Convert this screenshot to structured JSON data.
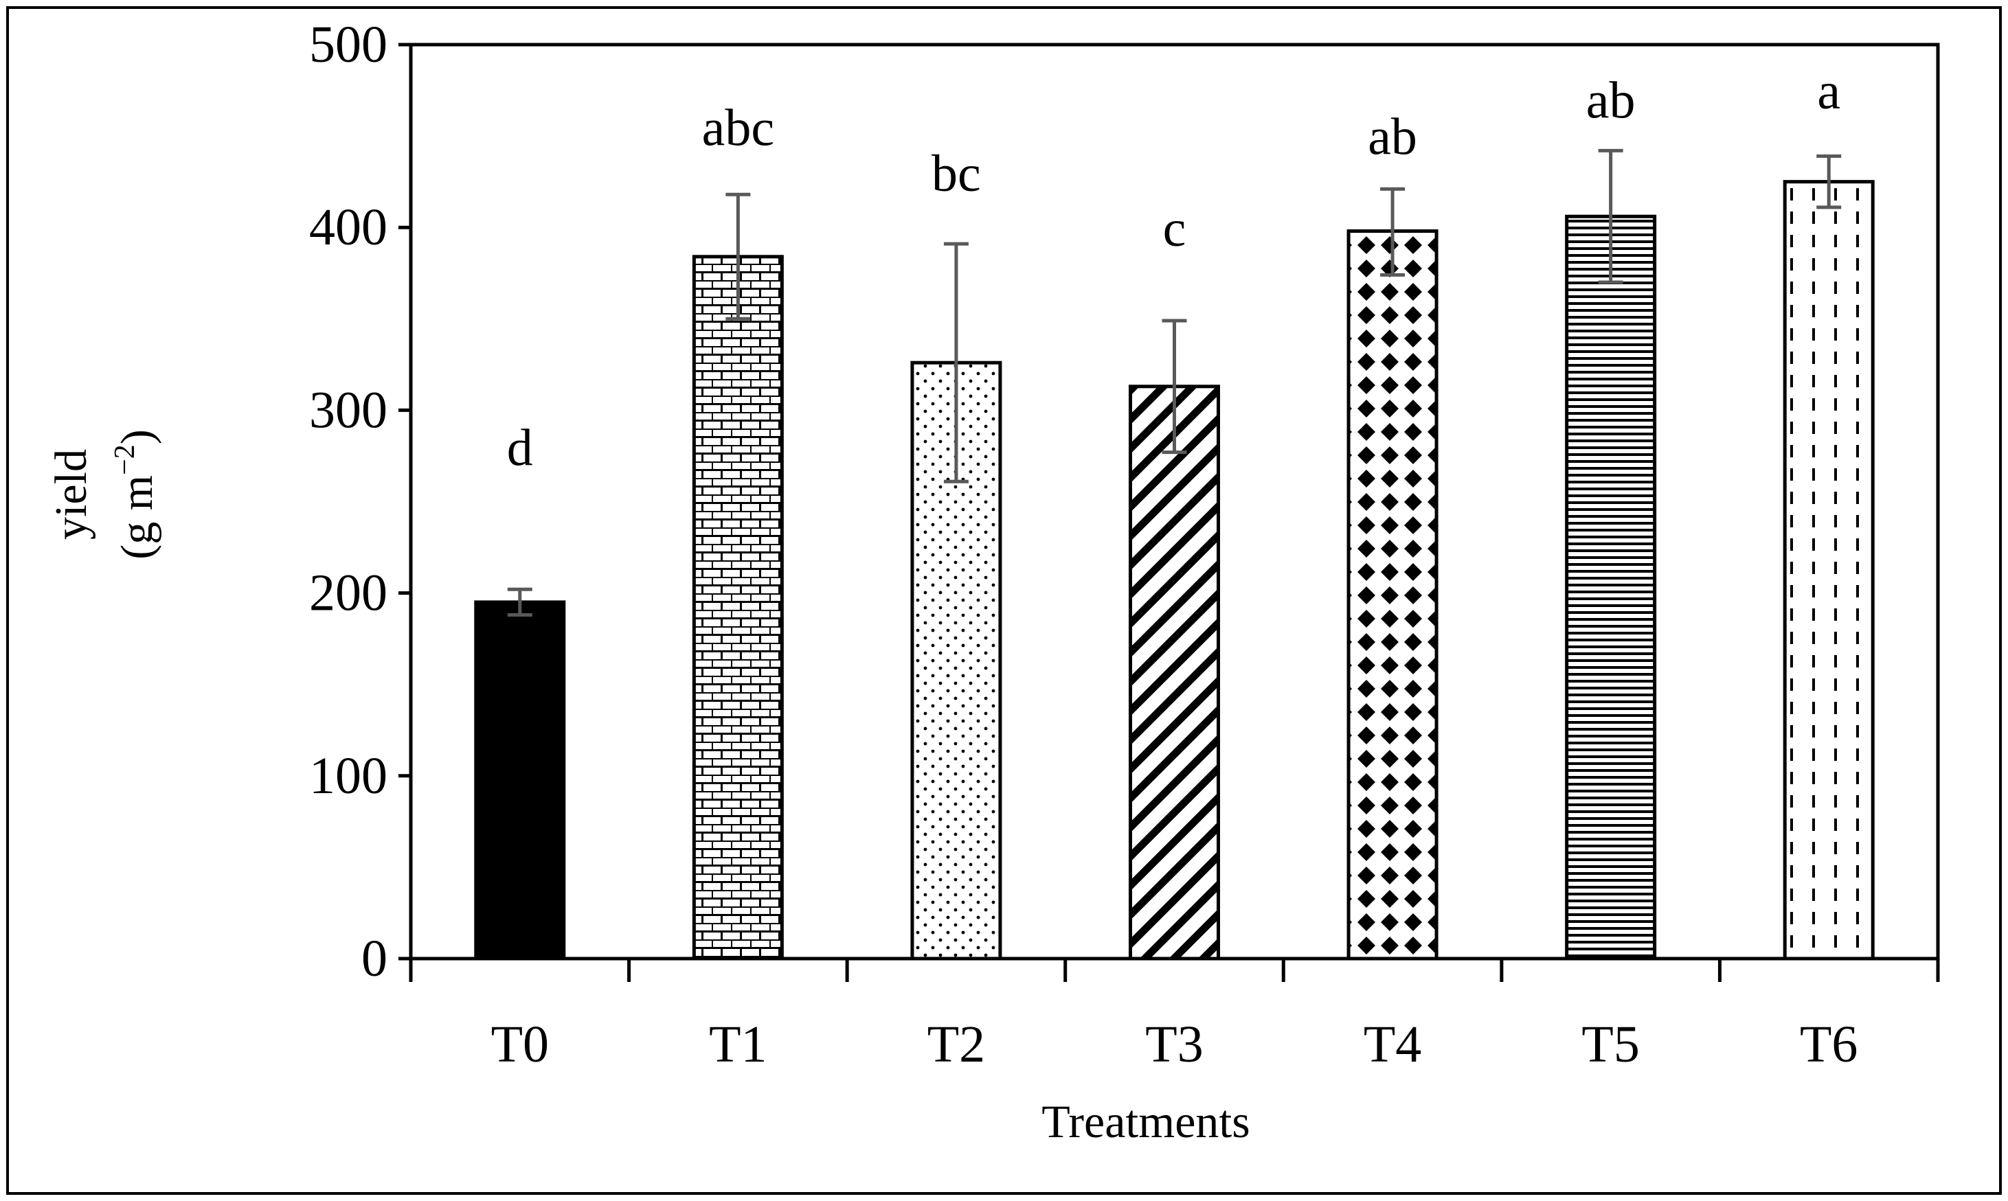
{
  "chart_data": {
    "type": "bar",
    "title": "",
    "xlabel": "Treatments",
    "ylabel_line1": "yield",
    "ylabel_line2_prefix": "(g m",
    "ylabel_line2_sup": "−2",
    "ylabel_line2_suffix": ")",
    "ylim": [
      0,
      500
    ],
    "yticks": [
      "0",
      "100",
      "200",
      "300",
      "400",
      "500"
    ],
    "ytick_values": [
      0,
      100,
      200,
      300,
      400,
      500
    ],
    "categories": [
      "T0",
      "T1",
      "T2",
      "T3",
      "T4",
      "T5",
      "T6"
    ],
    "values": [
      195,
      384,
      326,
      313,
      398,
      406,
      425
    ],
    "error_low": [
      188,
      350,
      261,
      277,
      374,
      370,
      411
    ],
    "error_high": [
      202,
      418,
      391,
      349,
      421,
      442,
      439
    ],
    "significance_letters": [
      "d",
      "abc",
      "bc",
      "c",
      "ab",
      "ab",
      "a"
    ],
    "letter_heights": [
      270,
      445,
      420,
      390,
      440,
      460,
      465
    ],
    "fill_patterns": [
      "solid",
      "brick",
      "dots",
      "diagonal",
      "diamonds",
      "horizontal",
      "dashed-vertical"
    ],
    "grid": false,
    "legend": "none"
  },
  "colors": {
    "bar_fill": "#000000",
    "error_bar": "#595959",
    "axis": "#000000",
    "background": "#ffffff"
  }
}
